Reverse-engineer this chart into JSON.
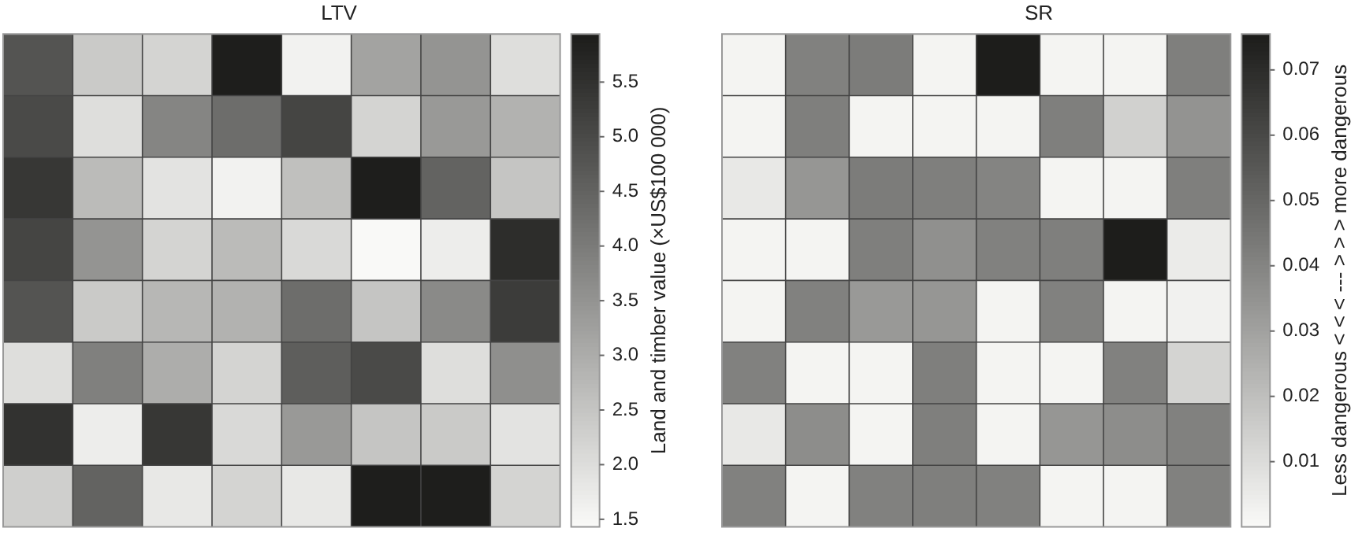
{
  "chart_data": [
    {
      "type": "heatmap",
      "title": "LTV",
      "clabel": "Land and timber value (×US$100 000)",
      "tick_labels": false,
      "categories": [
        null,
        null,
        null,
        null,
        null,
        null,
        null,
        null
      ],
      "y_categories": [
        null,
        null,
        null,
        null,
        null,
        null,
        null,
        null
      ],
      "clim": [
        1.43,
        5.94
      ],
      "cticks": [
        1.5,
        {
          "value": 2,
          "label": "2.0"
        },
        2.5,
        {
          "value": 3,
          "label": "3.0"
        },
        3.5,
        {
          "value": 4,
          "label": "4.0"
        },
        4.5,
        {
          "value": 5,
          "label": "5.0"
        },
        5.5
      ],
      "cells": [
        [
          4.8,
          2.4,
          2.2,
          5.9,
          1.6,
          3.2,
          3.5,
          2.0
        ],
        [
          5.0,
          2.0,
          3.8,
          4.3,
          5.1,
          2.2,
          3.4,
          2.9
        ],
        [
          5.4,
          2.7,
          1.9,
          1.6,
          2.6,
          5.9,
          4.5,
          2.5
        ],
        [
          5.1,
          3.5,
          2.2,
          2.7,
          2.1,
          1.45,
          1.7,
          5.6
        ],
        [
          4.8,
          2.4,
          2.8,
          2.9,
          4.3,
          2.5,
          3.7,
          5.3
        ],
        [
          2.0,
          3.9,
          3.0,
          2.2,
          4.6,
          5.0,
          2.0,
          3.6
        ],
        [
          5.5,
          1.7,
          5.4,
          2.1,
          3.4,
          2.5,
          2.4,
          1.9
        ],
        [
          2.3,
          4.5,
          1.8,
          2.2,
          1.8,
          5.9,
          5.9,
          2.2
        ]
      ]
    },
    {
      "type": "heatmap",
      "title": "SR",
      "clabel": "Less dangerous < < < --- > > > more dangerous",
      "tick_labels": false,
      "categories": [
        null,
        null,
        null,
        null,
        null,
        null,
        null,
        null
      ],
      "y_categories": [
        null,
        null,
        null,
        null,
        null,
        null,
        null,
        null
      ],
      "clim": [
        0,
        0.0755
      ],
      "cticks": [
        0.01,
        0.02,
        0.03,
        0.04,
        0.05,
        0.06,
        0.07
      ],
      "cells": [
        [
          0.002,
          0.041,
          0.043,
          0.002,
          0.075,
          0.002,
          0.002,
          0.042
        ],
        [
          0.002,
          0.042,
          0.002,
          0.002,
          0.002,
          0.042,
          0.014,
          0.035
        ],
        [
          0.006,
          0.034,
          0.043,
          0.042,
          0.04,
          0.002,
          0.002,
          0.042
        ],
        [
          0.002,
          0.002,
          0.042,
          0.036,
          0.041,
          0.042,
          0.075,
          0.005
        ],
        [
          0.002,
          0.041,
          0.033,
          0.034,
          0.002,
          0.041,
          0.002,
          0.003
        ],
        [
          0.041,
          0.002,
          0.002,
          0.042,
          0.002,
          0.002,
          0.041,
          0.013
        ],
        [
          0.006,
          0.037,
          0.002,
          0.042,
          0.002,
          0.034,
          0.037,
          0.041
        ],
        [
          0.041,
          0.002,
          0.041,
          0.042,
          0.041,
          0.002,
          0.002,
          0.041
        ]
      ]
    }
  ]
}
